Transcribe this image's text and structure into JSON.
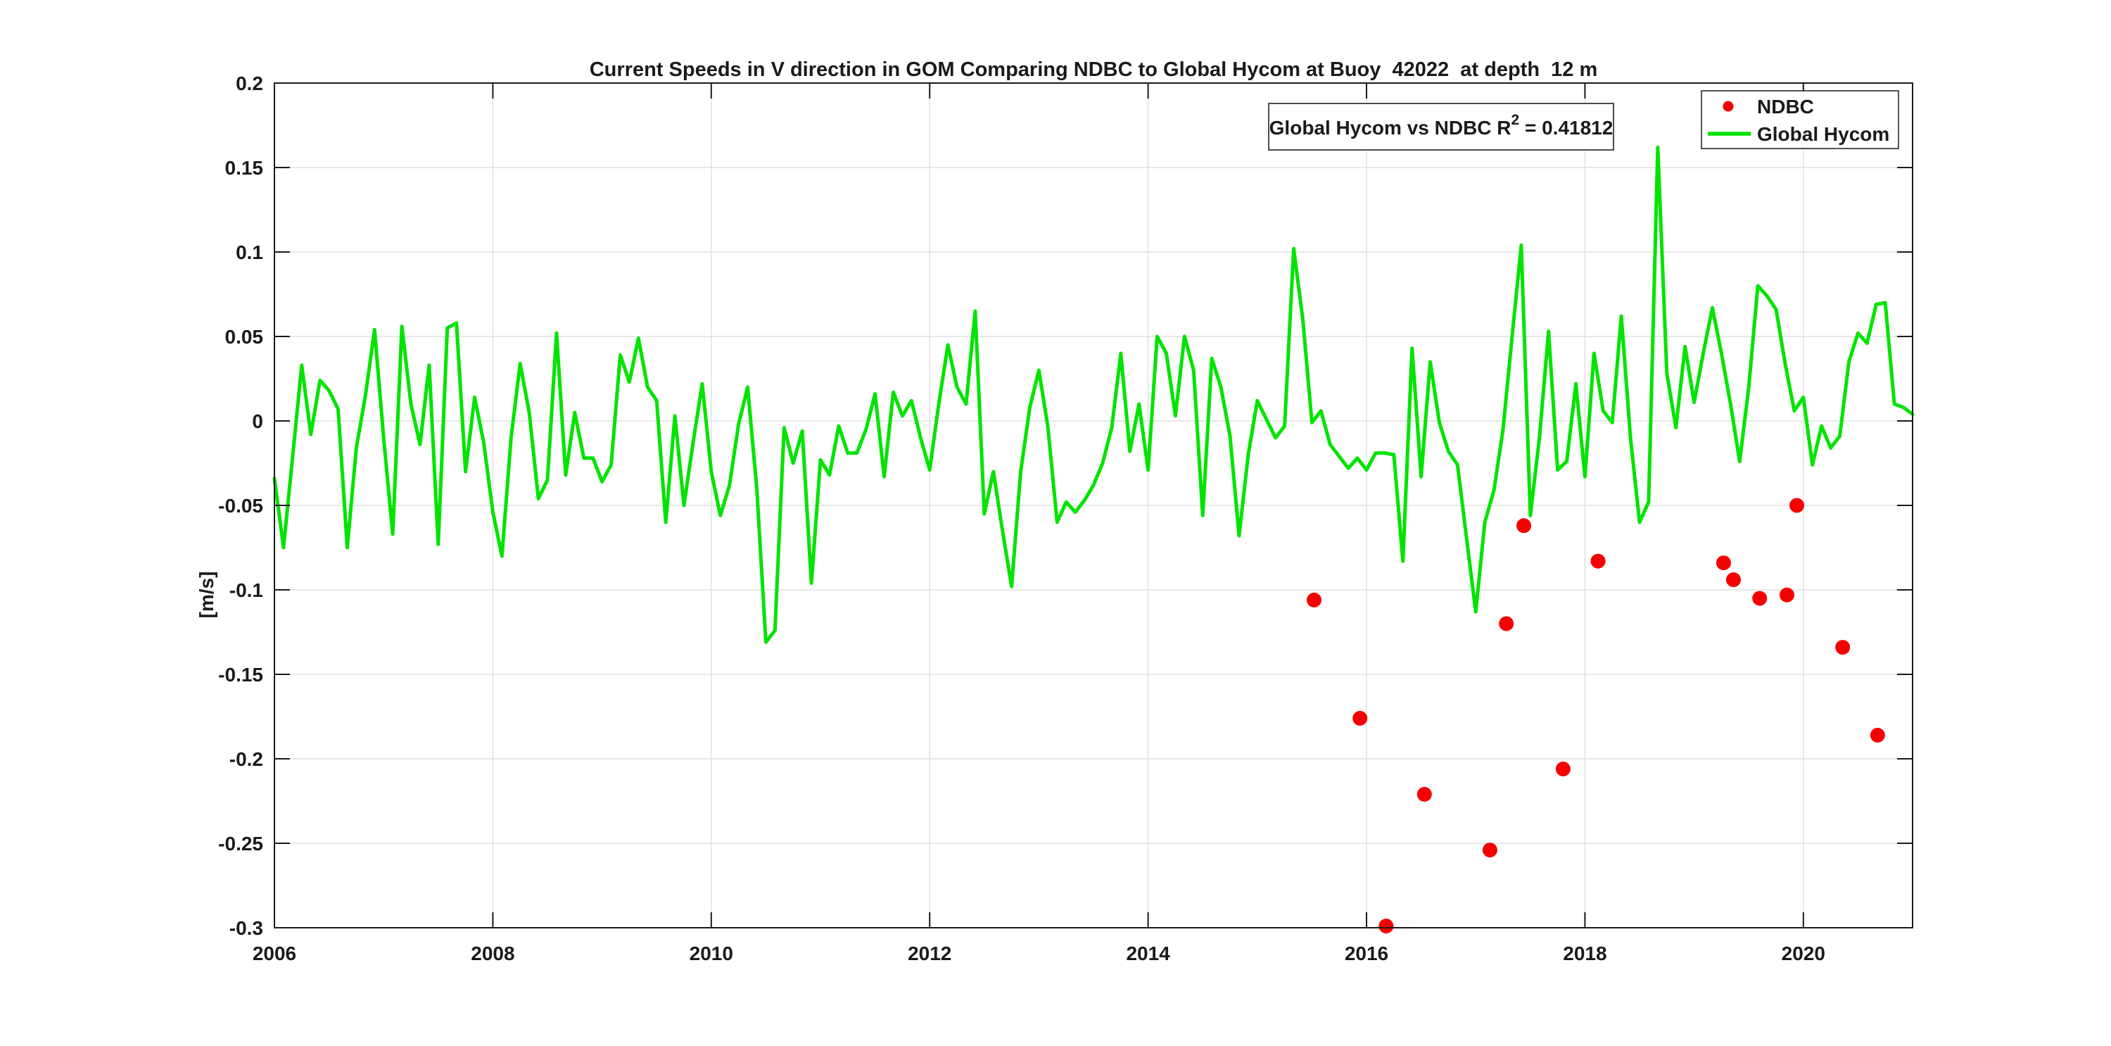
{
  "figure": {
    "background": "#ffffff"
  },
  "chart_data": {
    "type": "line+scatter",
    "title": "Current Speeds in V direction in GOM Comparing NDBC to Global Hycom at Buoy  42022  at depth  12 m",
    "xlabel": "",
    "ylabel": "[m/s]",
    "xlim": [
      2006,
      2021
    ],
    "ylim": [
      -0.3,
      0.2
    ],
    "xticks": [
      2006,
      2008,
      2010,
      2012,
      2014,
      2016,
      2018,
      2020
    ],
    "xtick_labels": [
      "2006",
      "2008",
      "2010",
      "2012",
      "2014",
      "2016",
      "2018",
      "2020"
    ],
    "yticks": [
      -0.3,
      -0.25,
      -0.2,
      -0.15,
      -0.1,
      -0.05,
      0,
      0.05,
      0.1,
      0.15,
      0.2
    ],
    "ytick_labels": [
      "-0.3",
      "-0.25",
      "-0.2",
      "-0.15",
      "-0.1",
      "-0.05",
      "0",
      "0.05",
      "0.1",
      "0.15",
      "0.2"
    ],
    "grid": true,
    "grid_color": "#e0e0e0",
    "axis_color": "#1a1a1a",
    "tick_label_color": "#1a1a1a",
    "r_squared": 0.41812,
    "annotation": {
      "prefix": "Global Hycom vs NDBC R",
      "superscript": "2",
      "suffix": " = 0.41812",
      "border_color": "#4d4d4d"
    },
    "legend": {
      "position": "top-right",
      "border_color": "#1a1a1a",
      "entries": [
        {
          "label": "NDBC",
          "type": "scatter",
          "color": "#f40000"
        },
        {
          "label": "Global Hycom",
          "type": "line",
          "color": "#00e400"
        }
      ]
    },
    "series": [
      {
        "name": "Global Hycom",
        "type": "line",
        "color": "#00e400",
        "x_start": 2006,
        "x_step": 0.0833333,
        "y": [
          -0.034,
          -0.075,
          -0.021,
          0.033,
          -0.008,
          0.024,
          0.018,
          0.007,
          -0.075,
          -0.016,
          0.015,
          0.054,
          -0.01,
          -0.067,
          0.056,
          0.01,
          -0.014,
          0.033,
          -0.073,
          0.055,
          0.058,
          -0.03,
          0.014,
          -0.013,
          -0.054,
          -0.08,
          -0.01,
          0.034,
          0.005,
          -0.046,
          -0.035,
          0.052,
          -0.032,
          0.005,
          -0.022,
          -0.022,
          -0.036,
          -0.026,
          0.039,
          0.023,
          0.049,
          0.02,
          0.012,
          -0.06,
          0.003,
          -0.05,
          -0.013,
          0.022,
          -0.03,
          -0.056,
          -0.038,
          -0.002,
          0.02,
          -0.04,
          -0.131,
          -0.124,
          -0.004,
          -0.025,
          -0.006,
          -0.096,
          -0.023,
          -0.032,
          -0.003,
          -0.019,
          -0.019,
          -0.005,
          0.016,
          -0.033,
          0.017,
          0.003,
          0.012,
          -0.01,
          -0.029,
          0.01,
          0.045,
          0.02,
          0.01,
          0.065,
          -0.055,
          -0.03,
          -0.065,
          -0.098,
          -0.03,
          0.008,
          0.03,
          -0.004,
          -0.06,
          -0.048,
          -0.054,
          -0.047,
          -0.038,
          -0.025,
          -0.004,
          0.04,
          -0.018,
          0.01,
          -0.029,
          0.05,
          0.04,
          0.003,
          0.05,
          0.03,
          -0.056,
          0.037,
          0.02,
          -0.009,
          -0.068,
          -0.02,
          0.012,
          0.001,
          -0.01,
          -0.003,
          0.102,
          0.06,
          -0.001,
          0.006,
          -0.014,
          -0.021,
          -0.028,
          -0.022,
          -0.029,
          -0.019,
          -0.019,
          -0.02,
          -0.083,
          0.043,
          -0.033,
          0.035,
          -0.001,
          -0.018,
          -0.026,
          -0.07,
          -0.113,
          -0.06,
          -0.041,
          -0.005,
          0.05,
          0.104,
          -0.056,
          -0.01,
          0.053,
          -0.029,
          -0.024,
          0.022,
          -0.033,
          0.04,
          0.006,
          -0.001,
          0.062,
          -0.01,
          -0.06,
          -0.048,
          0.162,
          0.028,
          -0.004,
          0.044,
          0.011,
          0.04,
          0.067,
          0.04,
          0.01,
          -0.024,
          0.02,
          0.08,
          0.074,
          0.066,
          0.034,
          0.006,
          0.014,
          -0.026,
          -0.003,
          -0.016,
          -0.009,
          0.035,
          0.052,
          0.046,
          0.069,
          0.07,
          0.01,
          0.008,
          0.004
        ]
      },
      {
        "name": "NDBC",
        "type": "scatter",
        "color": "#f40000",
        "x": [
          2015.52,
          2015.94,
          2016.18,
          2016.53,
          2017.13,
          2017.28,
          2017.44,
          2017.8,
          2018.12,
          2019.27,
          2019.36,
          2019.6,
          2019.85,
          2019.94,
          2020.36,
          2020.68
        ],
        "y": [
          -0.106,
          -0.176,
          -0.299,
          -0.221,
          -0.254,
          -0.12,
          -0.062,
          -0.206,
          -0.083,
          -0.084,
          -0.094,
          -0.105,
          -0.103,
          -0.05,
          -0.134,
          -0.186
        ]
      }
    ]
  }
}
